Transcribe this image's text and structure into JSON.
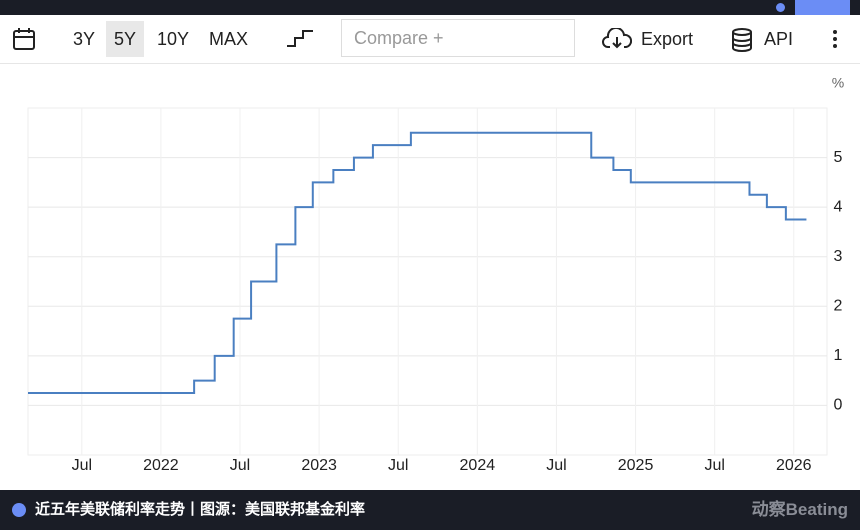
{
  "toolbar": {
    "ranges": [
      "3Y",
      "5Y",
      "10Y",
      "MAX"
    ],
    "selected_range": "5Y",
    "compare": "Compare +",
    "export": "Export",
    "api": "API"
  },
  "chart_data": {
    "type": "line",
    "step": "after",
    "y_unit": "%",
    "x": [
      2021.16,
      2022.21,
      2022.34,
      2022.46,
      2022.57,
      2022.73,
      2022.85,
      2022.96,
      2023.09,
      2023.22,
      2023.34,
      2023.58,
      2024.72,
      2024.86,
      2024.97,
      2025.72,
      2025.83,
      2025.95,
      2026.08
    ],
    "series": [
      {
        "color": "#4a7fc1",
        "values": [
          0.25,
          0.5,
          1.0,
          1.75,
          2.5,
          3.25,
          4.0,
          4.5,
          4.75,
          5.0,
          5.25,
          5.5,
          5.0,
          4.75,
          4.5,
          4.25,
          4.0,
          3.75,
          3.75
        ]
      }
    ],
    "xlim": [
      2021.16,
      2026.21
    ],
    "xticks": [
      {
        "value": 2021.5,
        "label": "Jul"
      },
      2022,
      {
        "value": 2022.5,
        "label": "Jul"
      },
      2023,
      {
        "value": 2023.5,
        "label": "Jul"
      },
      2024,
      {
        "value": 2024.5,
        "label": "Jul"
      },
      2025,
      {
        "value": 2025.5,
        "label": "Jul"
      },
      2026
    ],
    "ylim": [
      -1,
      6
    ],
    "yticks": [
      0,
      1,
      2,
      3,
      4,
      5
    ],
    "grid": true
  },
  "footer": {
    "caption": "近五年美联储利率走势丨图源：美国联邦基金利率",
    "watermark": "动察Beating"
  }
}
